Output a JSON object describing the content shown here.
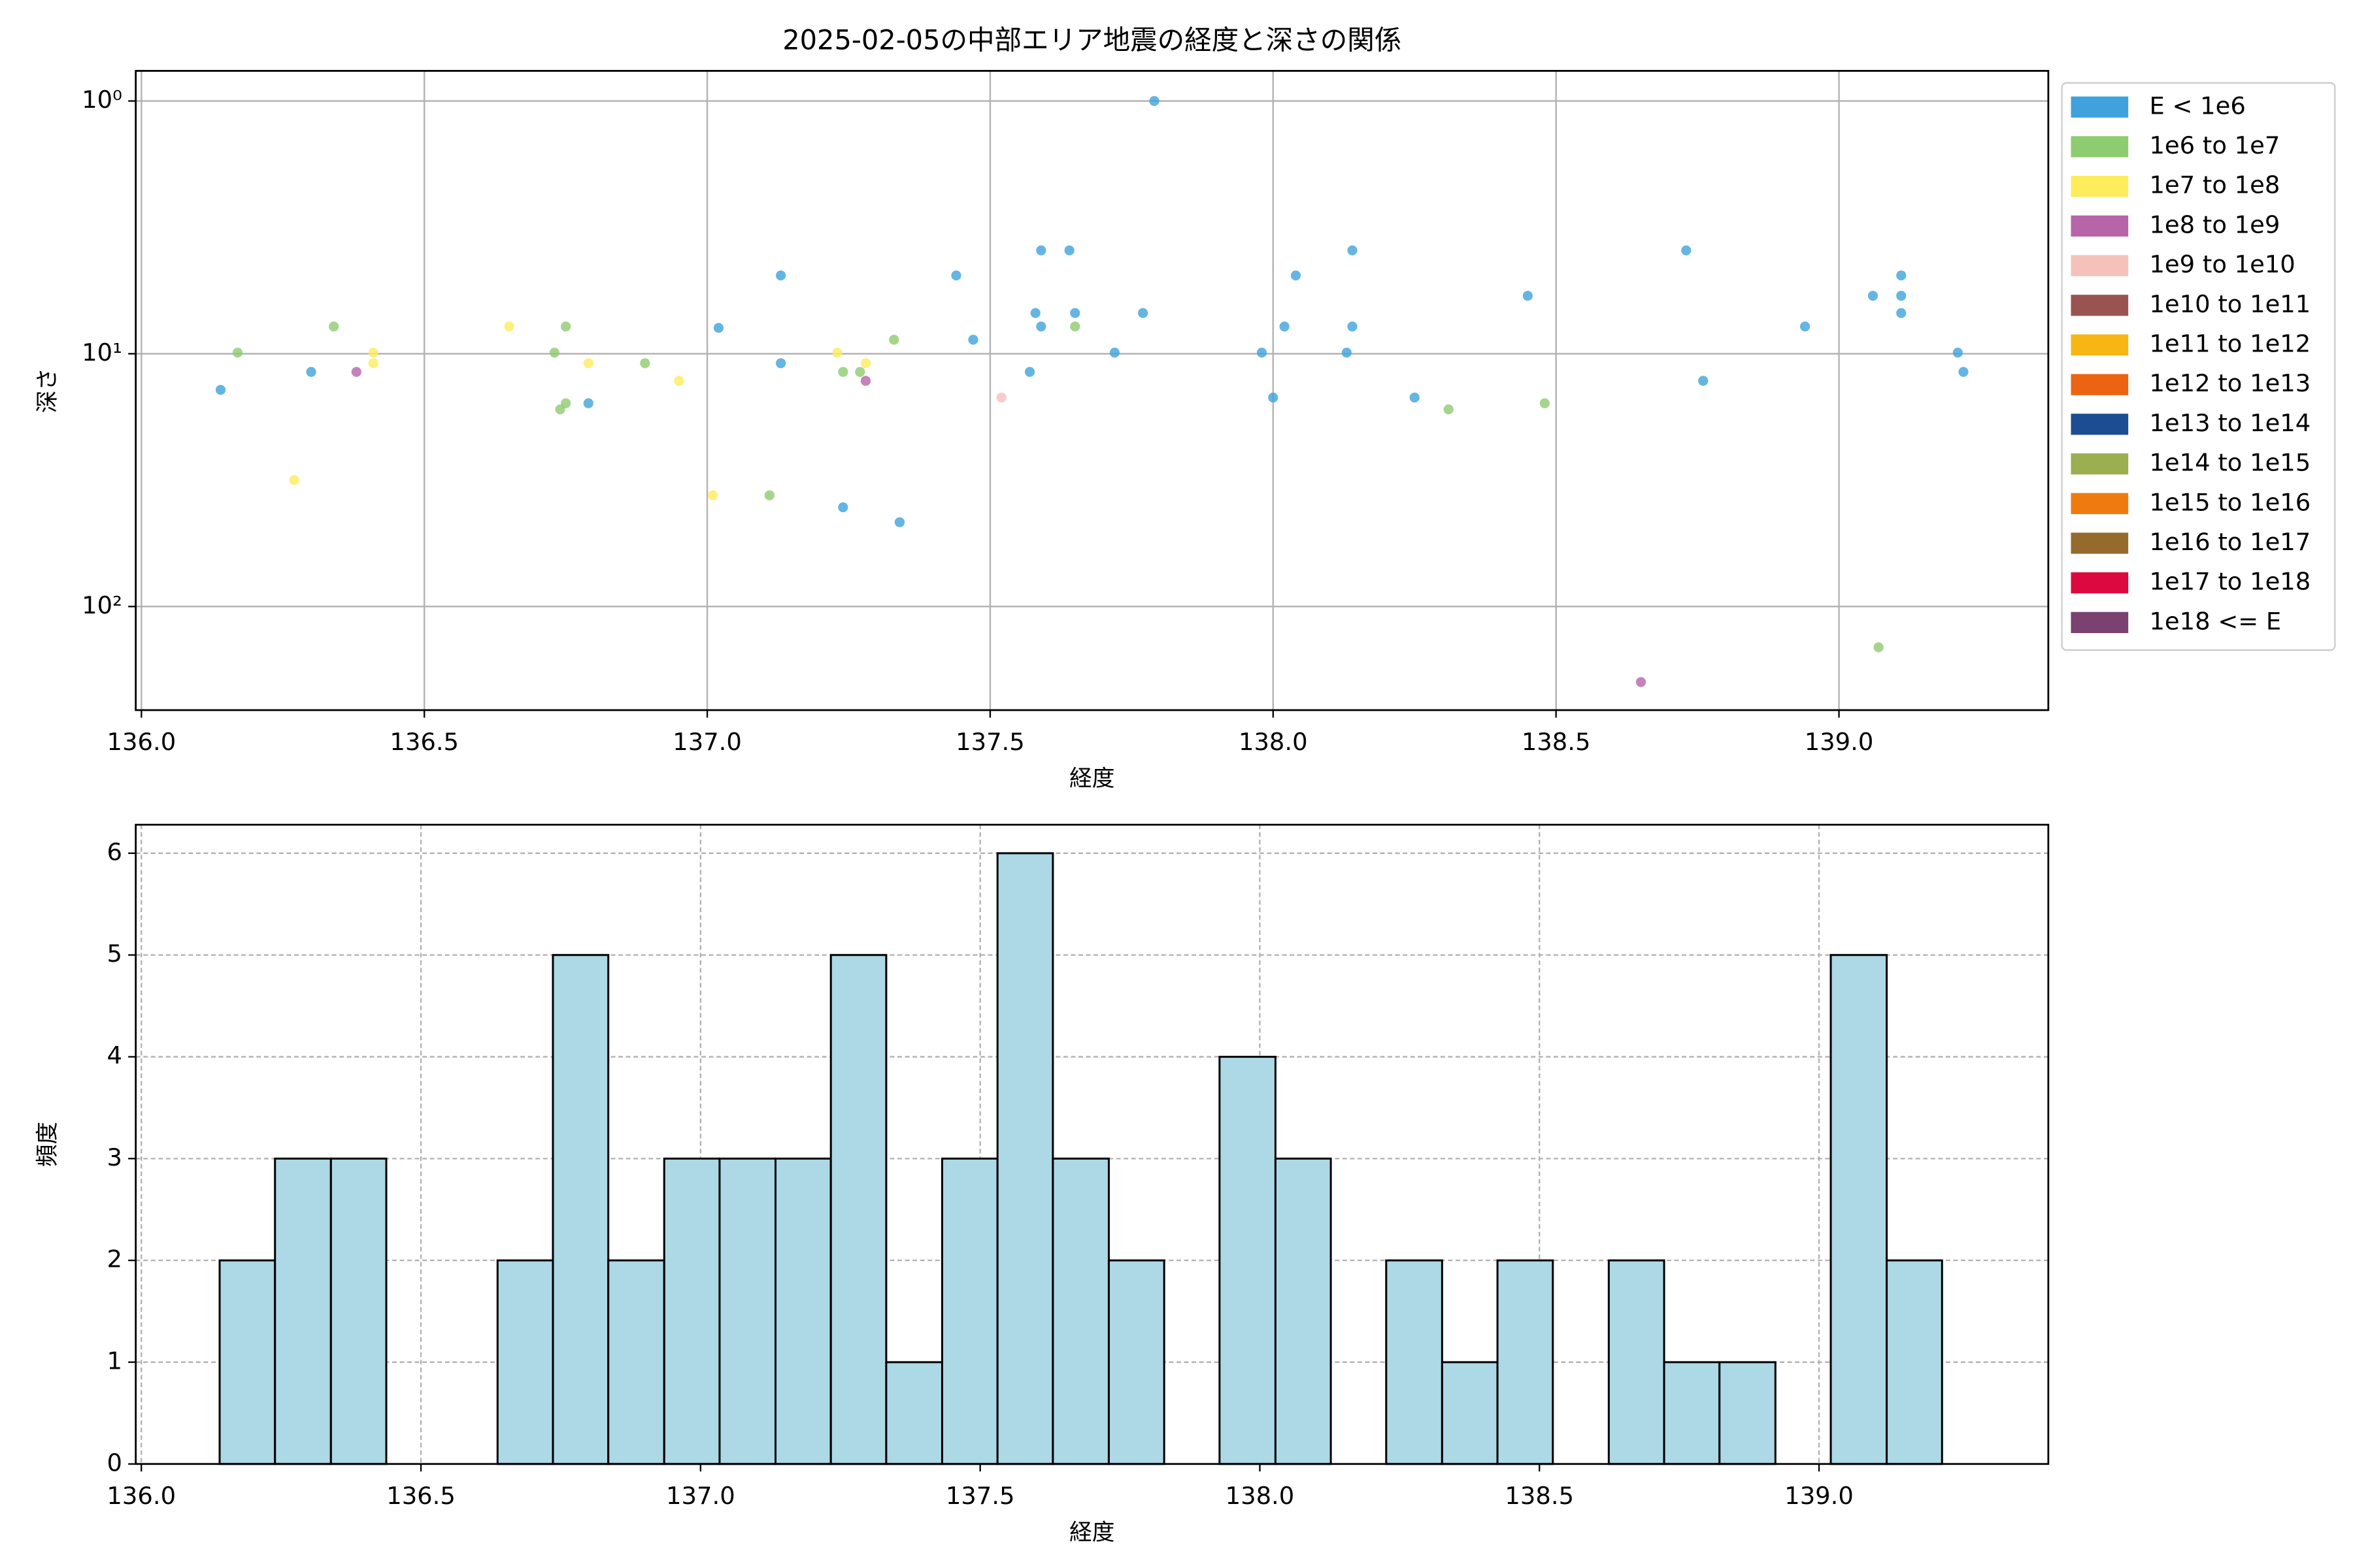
{
  "chart_data": [
    {
      "type": "scatter",
      "title": "2025-02-05の中部エリア地震の経度と深さの関係",
      "xlabel": "経度",
      "ylabel": "深さ",
      "xlim": [
        135.99,
        139.37
      ],
      "ylim": [
        257,
        0.76
      ],
      "yscale": "log",
      "grid": true,
      "legend": "outside right",
      "xticks": [
        {
          "value": 136,
          "label": "136.0"
        },
        {
          "value": 136.5,
          "label": "136.5"
        },
        {
          "value": 137,
          "label": "137.0"
        },
        {
          "value": 137.5,
          "label": "137.5"
        },
        {
          "value": 138,
          "label": "138.0"
        },
        {
          "value": 138.5,
          "label": "138.5"
        },
        {
          "value": 139,
          "label": "139.0"
        }
      ],
      "yticks": [
        {
          "value": 1,
          "label": "10⁰"
        },
        {
          "value": 10,
          "label": "10¹"
        },
        {
          "value": 100,
          "label": "10²"
        }
      ],
      "series": [
        {
          "name": "E < 1e6",
          "color": "#3fa2dc",
          "x": [
            136.14,
            136.3,
            137.13,
            137.13,
            137.02,
            136.79,
            137.24,
            137.34,
            137.44,
            137.47,
            137.59,
            137.64,
            137.58,
            137.59,
            137.65,
            137.57,
            137.72,
            137.77,
            137.79,
            137.98,
            138.0,
            138.02,
            138.04,
            138.14,
            138.14,
            138.13,
            138.25,
            138.45,
            138.73,
            138.76,
            138.94,
            139.06,
            139.11,
            139.11,
            139.11,
            139.21,
            139.22
          ],
          "values": [
            13.9,
            11.8,
            4.9,
            10.9,
            7.9,
            15.7,
            40.5,
            46.4,
            4.9,
            8.8,
            3.9,
            3.9,
            6.9,
            7.8,
            6.9,
            11.8,
            9.9,
            6.9,
            1.0,
            9.9,
            14.9,
            7.8,
            4.9,
            3.9,
            7.8,
            9.9,
            14.9,
            5.9,
            3.9,
            12.8,
            7.8,
            5.9,
            4.9,
            5.9,
            6.9,
            9.9,
            11.8
          ]
        },
        {
          "name": "1e6 to 1e7",
          "color": "#8fcb6f",
          "x": [
            136.17,
            136.34,
            136.73,
            136.75,
            136.75,
            136.74,
            136.89,
            137.11,
            137.24,
            137.27,
            137.33,
            137.65,
            138.31,
            138.48,
            139.07
          ],
          "values": [
            9.9,
            7.8,
            9.9,
            7.8,
            15.7,
            16.6,
            10.9,
            36.3,
            11.8,
            11.8,
            8.8,
            7.8,
            16.6,
            15.7,
            145
          ]
        },
        {
          "name": "1e7 to 1e8",
          "color": "#fdec5b",
          "x": [
            136.27,
            136.41,
            136.41,
            136.65,
            136.79,
            136.95,
            137.01,
            137.23,
            137.28
          ],
          "values": [
            31.6,
            10.9,
            9.9,
            7.8,
            10.9,
            12.8,
            36.3,
            9.9,
            10.9
          ]
        },
        {
          "name": "1e8 to 1e9",
          "color": "#b864a8",
          "x": [
            136.38,
            137.28,
            138.65
          ],
          "values": [
            11.8,
            12.8,
            199
          ]
        },
        {
          "name": "1e9 to 1e10",
          "color": "#f6c1bb",
          "x": [
            137.52
          ],
          "values": [
            14.9
          ]
        },
        {
          "name": "1e10 to 1e11",
          "color": "#9a5450",
          "x": [],
          "values": []
        },
        {
          "name": "1e11 to 1e12",
          "color": "#f7b614",
          "x": [],
          "values": []
        },
        {
          "name": "1e12 to 1e13",
          "color": "#ec6311",
          "x": [],
          "values": []
        },
        {
          "name": "1e13 to 1e14",
          "color": "#1c4d92",
          "x": [],
          "values": []
        },
        {
          "name": "1e14 to 1e15",
          "color": "#9bae50",
          "x": [],
          "values": []
        },
        {
          "name": "1e15 to 1e16",
          "color": "#ef7b10",
          "x": [],
          "values": []
        },
        {
          "name": "1e16 to 1e17",
          "color": "#946b2d",
          "x": [],
          "values": []
        },
        {
          "name": "1e17 to 1e18",
          "color": "#dc0840",
          "x": [],
          "values": []
        },
        {
          "name": "1e18 <= E",
          "color": "#7b4170",
          "x": [],
          "values": []
        }
      ]
    },
    {
      "type": "histogram",
      "xlabel": "経度",
      "ylabel": "頻度",
      "color": "#add8e6",
      "edgecolor": "#000000",
      "grid": true,
      "xlim": [
        135.99,
        139.41
      ],
      "ylim": [
        0,
        6.28
      ],
      "xticks": [
        {
          "value": 136,
          "label": "136.0"
        },
        {
          "value": 136.5,
          "label": "136.5"
        },
        {
          "value": 137,
          "label": "137.0"
        },
        {
          "value": 137.5,
          "label": "137.5"
        },
        {
          "value": 138,
          "label": "138.0"
        },
        {
          "value": 138.5,
          "label": "138.5"
        },
        {
          "value": 139,
          "label": "139.0"
        }
      ],
      "yticks": [
        0,
        1,
        2,
        3,
        4,
        5,
        6
      ],
      "bins": [
        136.14,
        136.239,
        136.339,
        136.438,
        136.537,
        136.637,
        136.736,
        136.835,
        136.935,
        137.034,
        137.134,
        137.233,
        137.332,
        137.432,
        137.531,
        137.63,
        137.73,
        137.829,
        137.928,
        138.028,
        138.127,
        138.226,
        138.326,
        138.425,
        138.524,
        138.624,
        138.723,
        138.822,
        138.922,
        139.021,
        139.121,
        139.22
      ],
      "values": [
        2,
        3,
        3,
        0,
        0,
        2,
        5,
        2,
        3,
        3,
        3,
        5,
        1,
        3,
        6,
        3,
        2,
        0,
        4,
        3,
        0,
        2,
        1,
        2,
        0,
        2,
        1,
        1,
        0,
        5,
        2
      ]
    }
  ]
}
